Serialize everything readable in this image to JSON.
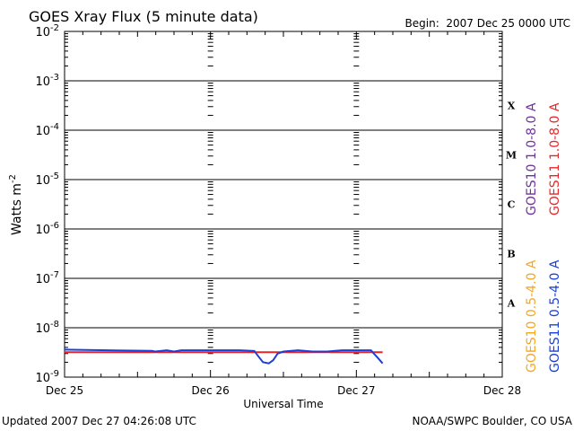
{
  "chart_data": {
    "type": "line",
    "title": "GOES Xray Flux (5 minute data)",
    "begin_label": "Begin:  2007 Dec 25 0000 UTC",
    "ylabel": "Watts m",
    "ylabel_sup": "-2",
    "xlabel": "Universal Time",
    "y_scale": "log",
    "ylim": [
      1e-09,
      0.01
    ],
    "y_ticks": [
      {
        "base": "10",
        "exp": "-2",
        "value": 0.01
      },
      {
        "base": "10",
        "exp": "-3",
        "value": 0.001
      },
      {
        "base": "10",
        "exp": "-4",
        "value": 0.0001
      },
      {
        "base": "10",
        "exp": "-5",
        "value": 1e-05
      },
      {
        "base": "10",
        "exp": "-6",
        "value": 1e-06
      },
      {
        "base": "10",
        "exp": "-7",
        "value": 1e-07
      },
      {
        "base": "10",
        "exp": "-8",
        "value": 1e-08
      },
      {
        "base": "10",
        "exp": "-9",
        "value": 1e-09
      }
    ],
    "x_ticks": [
      {
        "label": "Dec 25",
        "day": 0
      },
      {
        "label": "Dec 26",
        "day": 1
      },
      {
        "label": "Dec 27",
        "day": 2
      },
      {
        "label": "Dec 28",
        "day": 3
      }
    ],
    "xlim_days": [
      0,
      3
    ],
    "flare_classes": [
      {
        "label": "X",
        "level": 0.0001
      },
      {
        "label": "M",
        "level": 1e-05
      },
      {
        "label": "C",
        "level": 1e-06
      },
      {
        "label": "B",
        "level": 1e-07
      },
      {
        "label": "A",
        "level": 1e-08
      }
    ],
    "grid": "horizontal at each decade",
    "legend": {
      "placement": "right",
      "entries": [
        {
          "name": "GOES10 1.0-8.0 A",
          "color": "#7030a0"
        },
        {
          "name": "GOES11 1.0-8.0 A",
          "color": "#e8262a"
        },
        {
          "name": "GOES10 0.5-4.0 A",
          "color": "#f5a623"
        },
        {
          "name": "GOES11 0.5-4.0 A",
          "color": "#1a3fd9"
        }
      ]
    },
    "series": [
      {
        "name": "GOES11 1.0-8.0 A",
        "color": "#e8262a",
        "x_days": [
          0.0,
          0.5,
          1.0,
          1.5,
          2.0,
          2.1,
          2.18
        ],
        "y": [
          3.2e-09,
          3.2e-09,
          3.2e-09,
          3.2e-09,
          3.2e-09,
          3.2e-09,
          3.2e-09
        ]
      },
      {
        "name": "GOES11 0.5-4.0 A",
        "color": "#1a3fd9",
        "x_days": [
          0.0,
          0.3,
          0.6,
          0.62,
          0.7,
          0.75,
          0.8,
          0.9,
          1.0,
          1.2,
          1.3,
          1.33,
          1.36,
          1.4,
          1.43,
          1.46,
          1.5,
          1.6,
          1.7,
          1.8,
          1.9,
          2.0,
          2.1,
          2.12,
          2.15,
          2.18
        ],
        "y": [
          3.6e-09,
          3.5e-09,
          3.4e-09,
          3.3e-09,
          3.5e-09,
          3.3e-09,
          3.5e-09,
          3.5e-09,
          3.5e-09,
          3.5e-09,
          3.4e-09,
          2.6e-09,
          2e-09,
          1.9e-09,
          2.2e-09,
          3e-09,
          3.3e-09,
          3.5e-09,
          3.3e-09,
          3.3e-09,
          3.5e-09,
          3.5e-09,
          3.5e-09,
          3e-09,
          2.4e-09,
          1.9e-09
        ]
      }
    ]
  },
  "footer": {
    "updated": "Updated 2007 Dec 27 04:26:08 UTC",
    "credit": "NOAA/SWPC Boulder, CO USA"
  }
}
